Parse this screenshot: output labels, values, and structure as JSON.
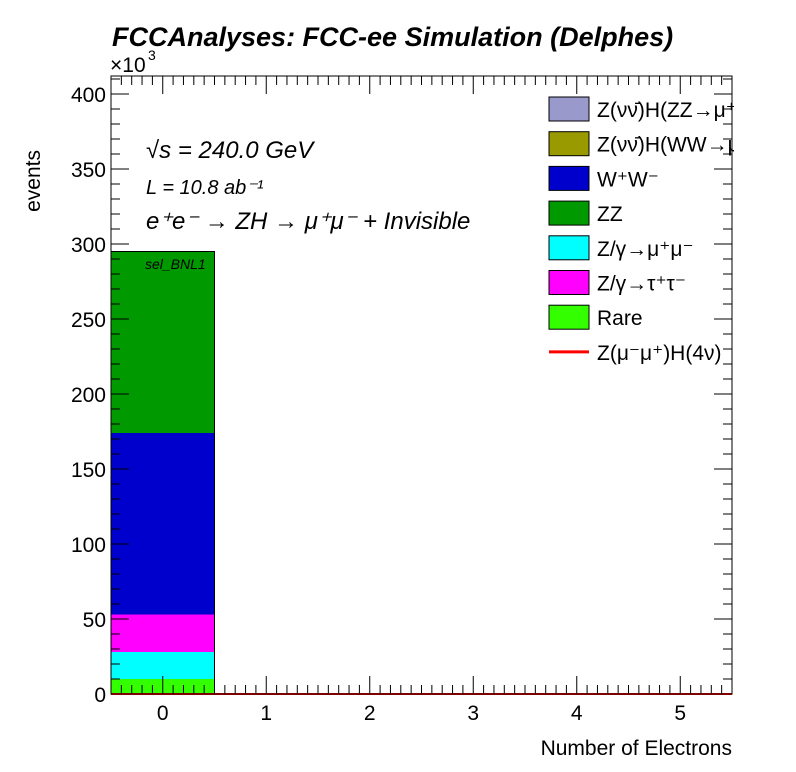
{
  "chart_data": {
    "type": "bar",
    "stacked": true,
    "title": "FCCAnalyses: FCC-ee Simulation (Delphes)",
    "xlabel": "Number of Electrons",
    "ylabel": "events",
    "y_exponent_label": "×10",
    "y_exponent_power": "3",
    "x_ticks": [
      "0",
      "1",
      "2",
      "3",
      "4",
      "5"
    ],
    "y_ticks": [
      "0",
      "50",
      "100",
      "150",
      "200",
      "250",
      "300",
      "350",
      "400"
    ],
    "xlim": [
      -0.5,
      5.5
    ],
    "ylim": [
      0,
      412
    ],
    "bins": [
      0,
      1,
      2,
      3,
      4,
      5
    ],
    "series": [
      {
        "name": "Rare",
        "color": "#33ff00",
        "values": [
          10,
          0,
          0,
          0,
          0,
          0
        ]
      },
      {
        "name": "Z/γ→τ⁺τ⁻",
        "color": "#ff00ff",
        "values": [
          0,
          0,
          0,
          0,
          0,
          0
        ]
      },
      {
        "name": "Z/γ→μ⁺μ⁻",
        "color": "#00ffff",
        "values": [
          18,
          0,
          0,
          0,
          0,
          0
        ]
      },
      {
        "name": "Z/γ→τ⁺τ⁻ ",
        "color": "#ff00ff",
        "values": [
          25,
          0,
          0,
          0,
          0,
          0
        ]
      },
      {
        "name": "W⁺W⁻",
        "color": "#0000cc",
        "values": [
          121,
          0,
          0,
          0,
          0,
          0
        ]
      },
      {
        "name": "ZZ",
        "color": "#009900",
        "values": [
          121,
          0,
          0,
          0,
          0,
          0
        ]
      }
    ],
    "signal": {
      "name": "Z(μ⁻μ⁺)H(4ν)",
      "color": "#ff0000",
      "values": [
        0,
        0,
        0,
        0,
        0,
        0
      ]
    },
    "legend": [
      {
        "label": "Z(νν̄)H(ZZ→μ⁺μ⁻ν⁺ν",
        "color": "#9999cc",
        "kind": "box"
      },
      {
        "label": "Z(νν̄)H(WW→μ⁺νμ",
        "color": "#999900",
        "kind": "box"
      },
      {
        "label": "W⁺W⁻",
        "color": "#0000cc",
        "kind": "box"
      },
      {
        "label": "ZZ",
        "color": "#009900",
        "kind": "box"
      },
      {
        "label": "Z/γ→μ⁺μ⁻",
        "color": "#00ffff",
        "kind": "box"
      },
      {
        "label": "Z/γ→τ⁺τ⁻",
        "color": "#ff00ff",
        "kind": "box"
      },
      {
        "label": "Rare",
        "color": "#33ff00",
        "kind": "box"
      },
      {
        "label": "Z(μ⁻μ⁺)H(4ν)",
        "color": "#ff0000",
        "kind": "line"
      }
    ],
    "legend_position": "top-right",
    "annotations": {
      "energy": "√s = 240.0 GeV",
      "lumi": "L = 10.8 ab⁻¹",
      "process": "e⁺e⁻ → ZH → μ⁺μ⁻ + Invisible",
      "selection": "sel_BNL1"
    },
    "grid": false
  }
}
